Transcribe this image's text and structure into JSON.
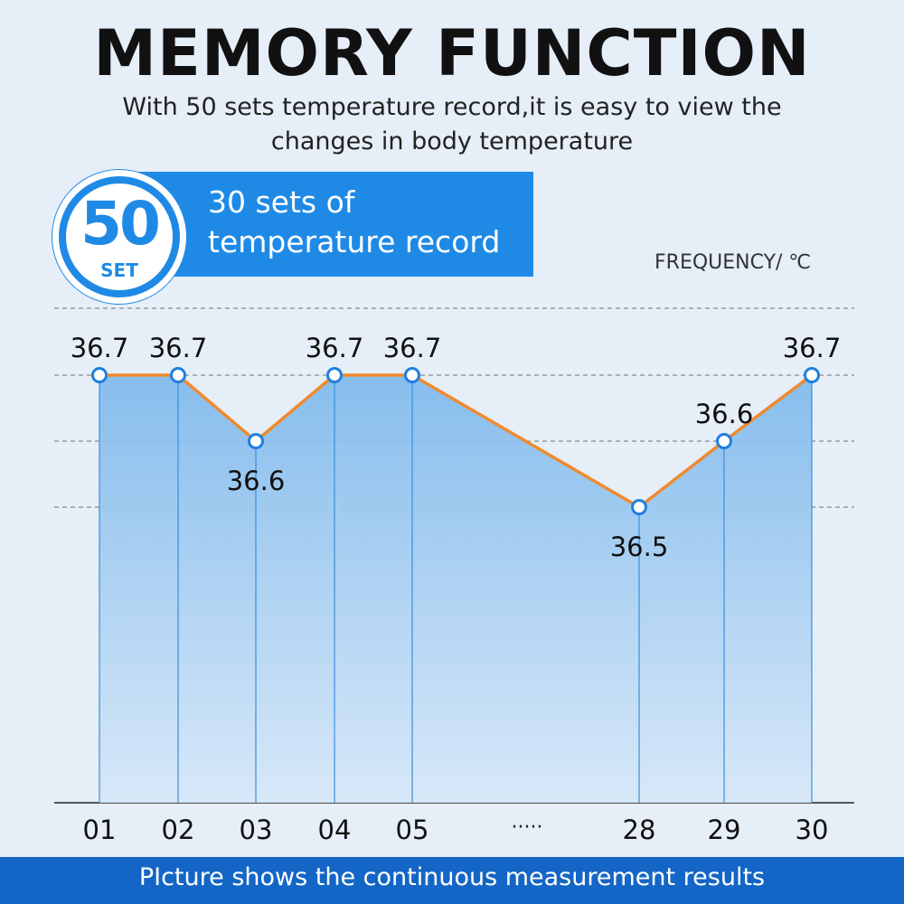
{
  "header": {
    "title": "MEMORY FUNCTION",
    "subtitle": "With 50 sets temperature record,it is easy to view the changes in body temperature"
  },
  "badge": {
    "number": "50",
    "unit": "SET"
  },
  "banner": {
    "text": "30 sets of temperature record"
  },
  "footer": {
    "text": "PIcture shows the continuous measurement results"
  },
  "colors": {
    "background": "#e6eef8",
    "accent_blue": "#1f8ae6",
    "footer_blue": "#1466c6",
    "line_orange": "#f08a2e",
    "area_top": "#7cb8ec",
    "area_bottom": "#d6e7f8"
  },
  "chart_data": {
    "type": "area",
    "ylabel": "FREQUENCY/ ℃",
    "categories": [
      "01",
      "02",
      "03",
      "04",
      "05",
      "28",
      "29",
      "30"
    ],
    "ellipsis_label": "·····",
    "values": [
      36.7,
      36.7,
      36.6,
      36.7,
      36.7,
      36.5,
      36.6,
      36.7
    ],
    "data_labels": [
      "36.7",
      "36.7",
      "36.6",
      "36.7",
      "36.7",
      "36.5",
      "36.6",
      "36.7"
    ],
    "reference_lines": [
      36.7,
      36.6,
      36.5
    ],
    "grid": true,
    "legend": "none"
  }
}
